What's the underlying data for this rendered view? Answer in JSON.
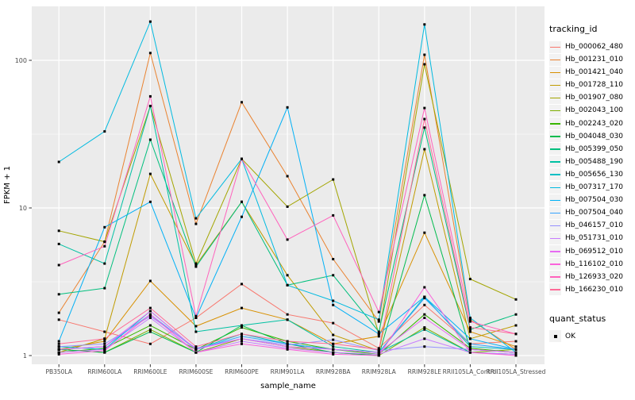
{
  "figure": {
    "background": "#FFFFFF",
    "panel_background": "#EBEBEB",
    "grid_color": "#FFFFFF",
    "tick_color": "#333333",
    "axis_text_color": "#4D4D4D",
    "point_color": "#000000"
  },
  "legend": {
    "tracking_title": "tracking_id",
    "quant_title": "quant_status",
    "quant_item_label": "OK"
  },
  "chart_data": {
    "type": "line",
    "title": "",
    "xlabel": "sample_name",
    "ylabel": "FPKM + 1",
    "y_scale": "log10",
    "y_ticks": [
      1,
      10,
      100
    ],
    "y_minor_ticks": [
      3.162,
      31.62
    ],
    "ylim": [
      0.93,
      240
    ],
    "grid": true,
    "legend_position": "right",
    "point_shape": "filled-square",
    "point_status_label": "OK",
    "categories": [
      "PB350LA",
      "RRIM600LA",
      "RRIM600LE",
      "RRIM600SE",
      "RRIM600PE",
      "RRIM901LA",
      "RRIM928BA",
      "RRIM928LA",
      "RRIM928LE",
      "RRII105LA_Control",
      "RRII105LA_Stressed"
    ],
    "series": [
      {
        "name": "Hb_000062_480",
        "color": "#F8766D",
        "values": [
          1.75,
          1.45,
          1.2,
          1.8,
          3.05,
          1.9,
          1.66,
          1.12,
          2.2,
          1.2,
          1.25
        ]
      },
      {
        "name": "Hb_001231_010",
        "color": "#EA8331",
        "values": [
          1.95,
          5.9,
          112,
          7.8,
          52,
          16.4,
          4.5,
          1.7,
          109,
          1.75,
          1.1
        ]
      },
      {
        "name": "Hb_001421_040",
        "color": "#D89000",
        "values": [
          1.1,
          1.25,
          3.2,
          1.58,
          2.1,
          1.75,
          1.2,
          1.35,
          6.8,
          1.45,
          1.15
        ]
      },
      {
        "name": "Hb_001728_110",
        "color": "#C09B00",
        "values": [
          1.05,
          1.3,
          17,
          4.1,
          11,
          3.5,
          1.38,
          1.08,
          25,
          1.3,
          1.6
        ]
      },
      {
        "name": "Hb_001907_080",
        "color": "#A3A500",
        "values": [
          7.0,
          5.9,
          49,
          4.2,
          21.5,
          10.2,
          15.6,
          1.4,
          94,
          3.3,
          2.4
        ]
      },
      {
        "name": "Hb_002043_100",
        "color": "#7CAE00",
        "values": [
          1.1,
          1.05,
          1.5,
          1.05,
          1.3,
          1.15,
          1.05,
          1.0,
          1.55,
          1.05,
          1.1
        ]
      },
      {
        "name": "Hb_002243_020",
        "color": "#39B600",
        "values": [
          1.05,
          1.12,
          1.6,
          1.1,
          1.55,
          1.25,
          1.1,
          1.02,
          1.9,
          1.12,
          1.05
        ]
      },
      {
        "name": "Hb_004048_030",
        "color": "#00BB4E",
        "values": [
          1.1,
          1.05,
          1.45,
          1.05,
          1.6,
          1.2,
          1.05,
          1.0,
          12.2,
          1.1,
          1.05
        ]
      },
      {
        "name": "Hb_005399_050",
        "color": "#00BF7D",
        "values": [
          2.6,
          2.86,
          29,
          4.0,
          11,
          3.0,
          3.5,
          1.45,
          35,
          1.5,
          1.9
        ]
      },
      {
        "name": "Hb_005488_190",
        "color": "#00C1A3",
        "values": [
          5.7,
          4.2,
          49,
          1.45,
          1.6,
          1.75,
          1.15,
          1.05,
          1.5,
          1.05,
          1.02
        ]
      },
      {
        "name": "Hb_005656_130",
        "color": "#00BFC4",
        "values": [
          1.15,
          1.1,
          2.0,
          1.1,
          1.4,
          1.2,
          1.1,
          1.05,
          2.5,
          1.15,
          1.1
        ]
      },
      {
        "name": "Hb_007317_170",
        "color": "#00BAE0",
        "values": [
          20.5,
          33,
          183,
          8.5,
          21.5,
          3.0,
          2.35,
          1.75,
          175,
          1.8,
          1.05
        ]
      },
      {
        "name": "Hb_007504_030",
        "color": "#00B0F6",
        "values": [
          1.25,
          7.4,
          11,
          1.8,
          8.7,
          48,
          2.2,
          1.4,
          2.5,
          1.3,
          1.1
        ]
      },
      {
        "name": "Hb_007504_040",
        "color": "#35A2FF",
        "values": [
          1.1,
          1.15,
          1.9,
          1.1,
          1.35,
          1.2,
          1.1,
          1.05,
          2.45,
          1.2,
          1.1
        ]
      },
      {
        "name": "Hb_046157_010",
        "color": "#9590FF",
        "values": [
          1.15,
          1.2,
          1.85,
          1.12,
          1.3,
          1.18,
          1.28,
          1.08,
          1.15,
          1.1,
          1.05
        ]
      },
      {
        "name": "Hb_051731_010",
        "color": "#C77CFF",
        "values": [
          1.05,
          1.1,
          1.8,
          1.05,
          1.25,
          1.12,
          1.05,
          1.02,
          1.3,
          1.05,
          1.02
        ]
      },
      {
        "name": "Hb_069512_010",
        "color": "#E76BF3",
        "values": [
          1.1,
          1.15,
          2.0,
          1.1,
          1.3,
          1.15,
          1.1,
          1.05,
          1.8,
          1.1,
          1.05
        ]
      },
      {
        "name": "Hb_116102_010",
        "color": "#FA62DB",
        "values": [
          1.02,
          1.08,
          1.9,
          1.05,
          1.2,
          1.1,
          1.02,
          1.0,
          2.9,
          1.05,
          1.0
        ]
      },
      {
        "name": "Hb_126933_020",
        "color": "#FF62BC",
        "values": [
          4.1,
          5.5,
          57,
          1.85,
          21.5,
          6.1,
          8.9,
          1.97,
          47.5,
          1.7,
          1.4
        ]
      },
      {
        "name": "Hb_166230_010",
        "color": "#FF6A98",
        "values": [
          1.2,
          1.3,
          2.1,
          1.15,
          1.4,
          1.25,
          1.2,
          1.1,
          40,
          1.55,
          1.4
        ]
      }
    ]
  }
}
